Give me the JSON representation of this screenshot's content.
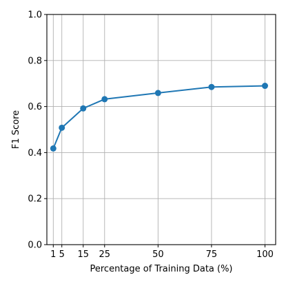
{
  "chart_data": {
    "type": "line",
    "xlabel": "Percentage of Training Data (%)",
    "ylabel": "F1 Score",
    "xlim": [
      -2,
      105
    ],
    "ylim": [
      0.0,
      1.0
    ],
    "xticks": [
      1,
      5,
      15,
      25,
      50,
      75,
      100
    ],
    "xtick_labels": [
      "1",
      "5",
      "15",
      "25",
      "50",
      "75",
      "100"
    ],
    "yticks": [
      0.0,
      0.2,
      0.4,
      0.6,
      0.8,
      1.0
    ],
    "ytick_labels": [
      "0.0",
      "0.2",
      "0.4",
      "0.6",
      "0.8",
      "1.0"
    ],
    "grid": true,
    "series": [
      {
        "color": "#1f77b4",
        "marker": "circle",
        "points": [
          {
            "x": 1,
            "y": 0.418
          },
          {
            "x": 5,
            "y": 0.508
          },
          {
            "x": 15,
            "y": 0.592
          },
          {
            "x": 25,
            "y": 0.632
          },
          {
            "x": 50,
            "y": 0.659
          },
          {
            "x": 75,
            "y": 0.685
          },
          {
            "x": 100,
            "y": 0.69
          }
        ]
      }
    ]
  }
}
